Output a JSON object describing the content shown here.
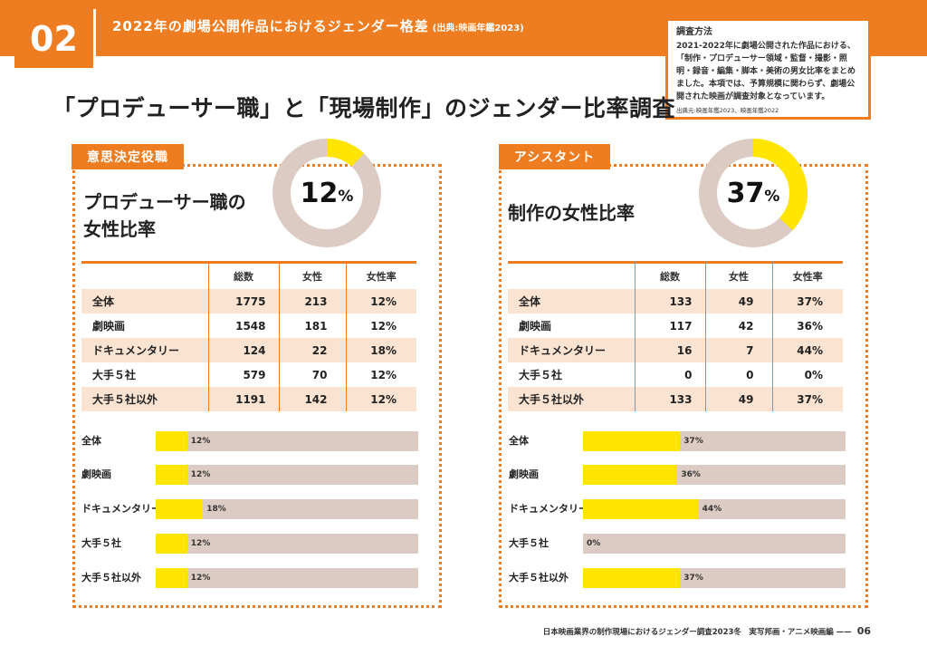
{
  "header": {
    "number": "02",
    "title": "2022年の劇場公開作品におけるジェンダー格差",
    "source": "(出典:映画年鑑2023)"
  },
  "method": {
    "title": "調査方法",
    "body": "2021-2022年に劇場公開された作品における、「制作・プロデューサー領域・監督・撮影・照明・録音・編集・脚本・美術の男女比率をまとめました。本項では、予算規模に関わらず、劇場公開された映画が調査対象となっています。",
    "source": "出典元:映画年鑑2023、映画年鑑2022"
  },
  "main_title": "「プロデューサー職」と「現場制作」のジェンダー比率調査",
  "colors": {
    "accent": "#ee7d22",
    "bar_fill": "#ffe500",
    "bar_track": "#dccbc2",
    "row_shade": "#fbe3d2"
  },
  "left": {
    "tab": "意思決定役職",
    "subtitle_line1": "プロデューサー職の",
    "subtitle_line2": "女性比率",
    "donut": {
      "value": "12",
      "sign": "%",
      "fraction": 0.12
    },
    "table": {
      "headers": [
        "",
        "総数",
        "女性",
        "女性率"
      ],
      "rows": [
        [
          "全体",
          "1775",
          "213",
          "12%"
        ],
        [
          "劇映画",
          "1548",
          "181",
          "12%"
        ],
        [
          "ドキュメンタリー",
          "124",
          "22",
          "18%"
        ],
        [
          "大手５社",
          "579",
          "70",
          "12%"
        ],
        [
          "大手５社以外",
          "1191",
          "142",
          "12%"
        ]
      ]
    },
    "bars": [
      {
        "label": "全体",
        "value": 12,
        "text": "12%"
      },
      {
        "label": "劇映画",
        "value": 12,
        "text": "12%"
      },
      {
        "label": "ドキュメンタリー",
        "value": 18,
        "text": "18%"
      },
      {
        "label": "大手５社",
        "value": 12,
        "text": "12%"
      },
      {
        "label": "大手５社以外",
        "value": 12,
        "text": "12%"
      }
    ]
  },
  "right": {
    "tab": "アシスタント",
    "subtitle_line1": "制作の女性比率",
    "donut": {
      "value": "37",
      "sign": "%",
      "fraction": 0.37
    },
    "table": {
      "headers": [
        "",
        "総数",
        "女性",
        "女性率"
      ],
      "rows": [
        [
          "全体",
          "133",
          "49",
          "37%"
        ],
        [
          "劇映画",
          "117",
          "42",
          "36%"
        ],
        [
          "ドキュメンタリー",
          "16",
          "7",
          "44%"
        ],
        [
          "大手５社",
          "0",
          "0",
          "0%"
        ],
        [
          "大手５社以外",
          "133",
          "49",
          "37%"
        ]
      ]
    },
    "bars": [
      {
        "label": "全体",
        "value": 37,
        "text": "37%"
      },
      {
        "label": "劇映画",
        "value": 36,
        "text": "36%"
      },
      {
        "label": "ドキュメンタリー",
        "value": 44,
        "text": "44%"
      },
      {
        "label": "大手５社",
        "value": 0,
        "text": "0%"
      },
      {
        "label": "大手５社以外",
        "value": 37,
        "text": "37%"
      }
    ]
  },
  "footer": {
    "text": "日本映画業界の制作現場におけるジェンダー調査2023冬　実写邦画・アニメ映画編",
    "dash": "——",
    "page": "06"
  }
}
